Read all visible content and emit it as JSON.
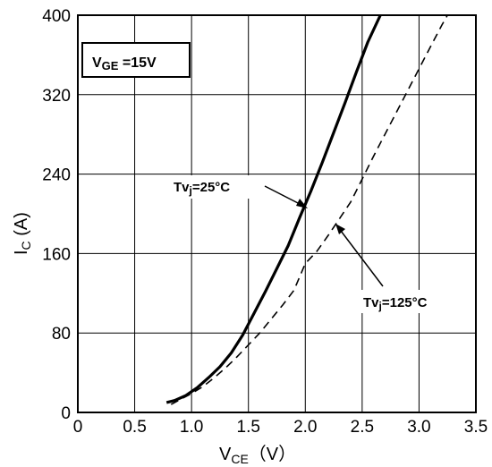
{
  "chart_data": {
    "type": "line",
    "title": "",
    "xlabel": {
      "main": "V",
      "sub": "CE",
      "unit": "（V）"
    },
    "ylabel": {
      "main": "I",
      "sub": "C",
      "unit": " (A)"
    },
    "xlim": [
      0,
      3.5
    ],
    "ylim": [
      0,
      400
    ],
    "xticks": [
      0,
      0.5,
      1.0,
      1.5,
      2.0,
      2.5,
      3.0,
      3.5
    ],
    "xtick_labels": [
      "0",
      "0.5",
      "1.0",
      "1.5",
      "2.0",
      "2.5",
      "3.0",
      "3.5"
    ],
    "yticks": [
      0,
      80,
      160,
      240,
      320,
      400
    ],
    "ytick_labels": [
      "0",
      "80",
      "160",
      "240",
      "320",
      "400"
    ],
    "grid": true,
    "condition": {
      "main": "V",
      "sub": "GE",
      "rest": " =15V"
    },
    "series": [
      {
        "name": "Tvj=25°C",
        "style": "solid",
        "points": [
          [
            0.78,
            10
          ],
          [
            0.85,
            12
          ],
          [
            0.95,
            17
          ],
          [
            1.05,
            25
          ],
          [
            1.15,
            35
          ],
          [
            1.25,
            46
          ],
          [
            1.35,
            60
          ],
          [
            1.45,
            78
          ],
          [
            1.55,
            100
          ],
          [
            1.65,
            122
          ],
          [
            1.75,
            145
          ],
          [
            1.85,
            168
          ],
          [
            1.95,
            196
          ],
          [
            2.05,
            223
          ],
          [
            2.15,
            252
          ],
          [
            2.25,
            282
          ],
          [
            2.35,
            312
          ],
          [
            2.45,
            343
          ],
          [
            2.55,
            373
          ],
          [
            2.66,
            400
          ]
        ]
      },
      {
        "name": "Tvj=125°C",
        "style": "dashed",
        "points": [
          [
            0.82,
            8
          ],
          [
            0.9,
            13
          ],
          [
            1.0,
            19
          ],
          [
            1.1,
            26
          ],
          [
            1.2,
            35
          ],
          [
            1.3,
            45
          ],
          [
            1.4,
            56
          ],
          [
            1.5,
            68
          ],
          [
            1.6,
            80
          ],
          [
            1.7,
            94
          ],
          [
            1.8,
            108
          ],
          [
            1.9,
            123
          ],
          [
            2.0,
            150
          ],
          [
            2.1,
            162
          ],
          [
            2.2,
            178
          ],
          [
            2.3,
            195
          ],
          [
            2.4,
            212
          ],
          [
            2.5,
            235
          ],
          [
            2.6,
            258
          ],
          [
            2.7,
            280
          ],
          [
            2.8,
            302
          ],
          [
            2.9,
            324
          ],
          [
            3.0,
            346
          ],
          [
            3.1,
            368
          ],
          [
            3.2,
            390
          ],
          [
            3.25,
            400
          ]
        ]
      }
    ],
    "annotations": [
      {
        "main": "Tv",
        "sub": "j",
        "rest": "=25°C"
      },
      {
        "main": "Tv",
        "sub": "j",
        "rest": "=125°C"
      }
    ]
  }
}
